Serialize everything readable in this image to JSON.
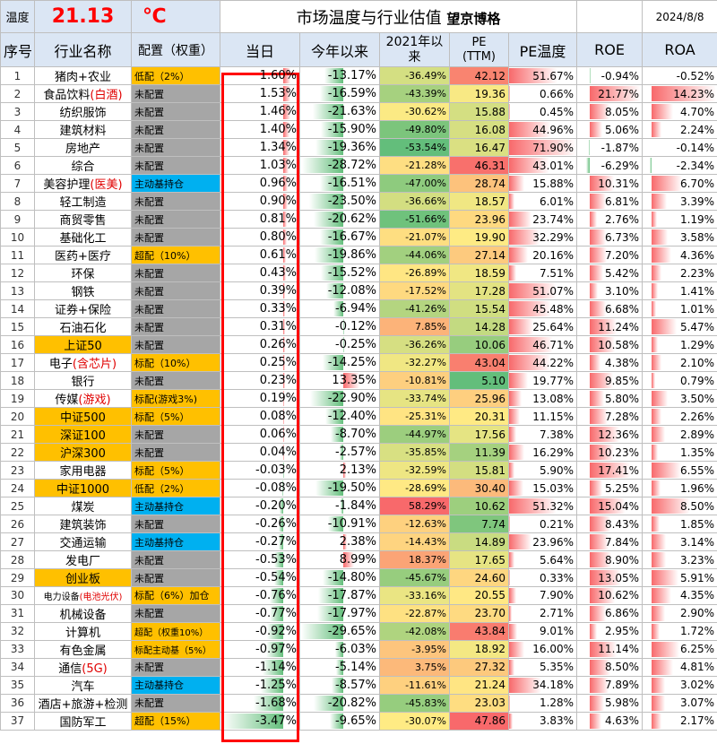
{
  "header": {
    "temp_label": "温度",
    "temp_value": "21.13",
    "temp_unit": "℃",
    "title": "市场温度与行业估值",
    "brand": "望京博格",
    "date": "2024/8/8"
  },
  "columns": [
    "序号",
    "行业名称",
    "配置（权重）",
    "当日",
    "今年以来",
    "2021年以来",
    "PE\n(TTM)",
    "PE温度",
    "ROE",
    "ROA"
  ],
  "colors": {
    "gray": "#a6a6a6",
    "orange": "#ffc000",
    "blue": "#00b0f0",
    "red": "#e00000",
    "highlight": "#ff0000"
  },
  "rows": [
    {
      "idx": "1",
      "name": "猪肉+农业",
      "name_red": "",
      "config": "低配（2%）",
      "cfg": "orange",
      "today": "1.60%",
      "ytd": "-13.17%",
      "since2021": "-36.49%",
      "pe": "42.12",
      "pe_temp": "51.67%",
      "roe": "-0.94%",
      "roa": "-0.52%"
    },
    {
      "idx": "2",
      "name": "食品饮料",
      "name_red": "(白酒)",
      "config": "未配置",
      "cfg": "gray",
      "today": "1.53%",
      "ytd": "-16.59%",
      "since2021": "-43.39%",
      "pe": "19.36",
      "pe_temp": "0.66%",
      "roe": "21.77%",
      "roa": "14.23%"
    },
    {
      "idx": "3",
      "name": "纺织服饰",
      "name_red": "",
      "config": "未配置",
      "cfg": "gray",
      "today": "1.46%",
      "ytd": "-21.63%",
      "since2021": "-30.62%",
      "pe": "15.88",
      "pe_temp": "0.45%",
      "roe": "8.05%",
      "roa": "4.70%"
    },
    {
      "idx": "4",
      "name": "建筑材料",
      "name_red": "",
      "config": "未配置",
      "cfg": "gray",
      "today": "1.40%",
      "ytd": "-15.90%",
      "since2021": "-49.80%",
      "pe": "16.08",
      "pe_temp": "44.96%",
      "roe": "5.06%",
      "roa": "2.24%"
    },
    {
      "idx": "5",
      "name": "房地产",
      "name_red": "",
      "config": "未配置",
      "cfg": "gray",
      "today": "1.34%",
      "ytd": "-19.36%",
      "since2021": "-53.54%",
      "pe": "16.47",
      "pe_temp": "71.90%",
      "roe": "-1.87%",
      "roa": "-0.14%"
    },
    {
      "idx": "6",
      "name": "综合",
      "name_red": "",
      "config": "未配置",
      "cfg": "gray",
      "today": "1.03%",
      "ytd": "-28.72%",
      "since2021": "-21.28%",
      "pe": "46.31",
      "pe_temp": "43.01%",
      "roe": "-6.29%",
      "roa": "-2.34%"
    },
    {
      "idx": "7",
      "name": "美容护理",
      "name_red": "(医美)",
      "config": "主动基持仓",
      "cfg": "blue",
      "today": "0.96%",
      "ytd": "-16.51%",
      "since2021": "-47.00%",
      "pe": "28.74",
      "pe_temp": "15.88%",
      "roe": "10.31%",
      "roa": "6.70%"
    },
    {
      "idx": "8",
      "name": "轻工制造",
      "name_red": "",
      "config": "未配置",
      "cfg": "gray",
      "today": "0.90%",
      "ytd": "-23.50%",
      "since2021": "-36.66%",
      "pe": "18.57",
      "pe_temp": "6.01%",
      "roe": "6.81%",
      "roa": "3.39%"
    },
    {
      "idx": "9",
      "name": "商贸零售",
      "name_red": "",
      "config": "未配置",
      "cfg": "gray",
      "today": "0.81%",
      "ytd": "-20.62%",
      "since2021": "-51.66%",
      "pe": "23.96",
      "pe_temp": "23.74%",
      "roe": "2.76%",
      "roa": "1.19%"
    },
    {
      "idx": "10",
      "name": "基础化工",
      "name_red": "",
      "config": "未配置",
      "cfg": "gray",
      "today": "0.80%",
      "ytd": "-16.67%",
      "since2021": "-21.07%",
      "pe": "19.90",
      "pe_temp": "32.29%",
      "roe": "6.73%",
      "roa": "3.58%"
    },
    {
      "idx": "11",
      "name": "医药+医疗",
      "name_red": "",
      "config": "超配（10%）",
      "cfg": "orange",
      "today": "0.61%",
      "ytd": "-19.86%",
      "since2021": "-44.06%",
      "pe": "27.14",
      "pe_temp": "20.16%",
      "roe": "7.20%",
      "roa": "4.36%"
    },
    {
      "idx": "12",
      "name": "环保",
      "name_red": "",
      "config": "未配置",
      "cfg": "gray",
      "today": "0.43%",
      "ytd": "-15.52%",
      "since2021": "-26.89%",
      "pe": "18.59",
      "pe_temp": "7.51%",
      "roe": "5.42%",
      "roa": "2.23%"
    },
    {
      "idx": "13",
      "name": "钢铁",
      "name_red": "",
      "config": "未配置",
      "cfg": "gray",
      "today": "0.39%",
      "ytd": "-12.08%",
      "since2021": "-17.52%",
      "pe": "17.28",
      "pe_temp": "51.07%",
      "roe": "3.10%",
      "roa": "1.41%"
    },
    {
      "idx": "14",
      "name": "证券+保险",
      "name_red": "",
      "config": "未配置",
      "cfg": "gray",
      "today": "0.33%",
      "ytd": "-6.94%",
      "since2021": "-41.26%",
      "pe": "15.54",
      "pe_temp": "45.48%",
      "roe": "6.68%",
      "roa": "1.01%"
    },
    {
      "idx": "15",
      "name": "石油石化",
      "name_red": "",
      "config": "未配置",
      "cfg": "gray",
      "today": "0.31%",
      "ytd": "-0.12%",
      "since2021": "7.85%",
      "pe": "14.28",
      "pe_temp": "25.64%",
      "roe": "11.24%",
      "roa": "5.47%"
    },
    {
      "idx": "16",
      "name": "上证50",
      "name_red": "",
      "config": "未配置",
      "cfg": "gray",
      "today": "0.26%",
      "ytd": "-0.25%",
      "since2021": "-36.26%",
      "pe": "10.06",
      "pe_temp": "46.71%",
      "roe": "10.58%",
      "roa": "1.29%",
      "name_bg": "orange"
    },
    {
      "idx": "17",
      "name": "电子",
      "name_red": "(含芯片)",
      "config": "标配（10%）",
      "cfg": "orange",
      "today": "0.25%",
      "ytd": "-14.25%",
      "since2021": "-32.27%",
      "pe": "43.04",
      "pe_temp": "44.22%",
      "roe": "4.38%",
      "roa": "2.10%"
    },
    {
      "idx": "18",
      "name": "银行",
      "name_red": "",
      "config": "未配置",
      "cfg": "gray",
      "today": "0.23%",
      "ytd": "13.35%",
      "since2021": "-10.81%",
      "pe": "5.10",
      "pe_temp": "19.77%",
      "roe": "9.85%",
      "roa": "0.79%"
    },
    {
      "idx": "19",
      "name": "传媒",
      "name_red": "(游戏)",
      "config": "标配(游戏3%)",
      "cfg": "orange",
      "today": "0.19%",
      "ytd": "-22.90%",
      "since2021": "-33.74%",
      "pe": "25.96",
      "pe_temp": "13.08%",
      "roe": "5.80%",
      "roa": "3.50%"
    },
    {
      "idx": "20",
      "name": "中证500",
      "name_red": "",
      "config": "标配（5%）",
      "cfg": "orange",
      "today": "0.08%",
      "ytd": "-12.40%",
      "since2021": "-25.31%",
      "pe": "20.31",
      "pe_temp": "11.15%",
      "roe": "7.28%",
      "roa": "2.26%",
      "name_bg": "orange"
    },
    {
      "idx": "21",
      "name": "深证100",
      "name_red": "",
      "config": "未配置",
      "cfg": "gray",
      "today": "0.06%",
      "ytd": "-8.70%",
      "since2021": "-44.97%",
      "pe": "17.56",
      "pe_temp": "7.38%",
      "roe": "12.36%",
      "roa": "2.89%",
      "name_bg": "orange"
    },
    {
      "idx": "22",
      "name": "沪深300",
      "name_red": "",
      "config": "未配置",
      "cfg": "gray",
      "today": "0.04%",
      "ytd": "-2.57%",
      "since2021": "-35.85%",
      "pe": "11.39",
      "pe_temp": "16.29%",
      "roe": "10.23%",
      "roa": "1.35%",
      "name_bg": "orange"
    },
    {
      "idx": "23",
      "name": "家用电器",
      "name_red": "",
      "config": "标配（5%）",
      "cfg": "orange",
      "today": "-0.03%",
      "ytd": "2.13%",
      "since2021": "-32.59%",
      "pe": "15.81",
      "pe_temp": "5.90%",
      "roe": "17.41%",
      "roa": "6.55%"
    },
    {
      "idx": "24",
      "name": "中证1000",
      "name_red": "",
      "config": "低配（2%）",
      "cfg": "orange",
      "today": "-0.08%",
      "ytd": "-19.50%",
      "since2021": "-28.69%",
      "pe": "30.40",
      "pe_temp": "15.03%",
      "roe": "5.25%",
      "roa": "1.96%",
      "name_bg": "orange"
    },
    {
      "idx": "25",
      "name": "煤炭",
      "name_red": "",
      "config": "主动基持仓",
      "cfg": "blue",
      "today": "-0.20%",
      "ytd": "-1.84%",
      "since2021": "58.29%",
      "pe": "10.62",
      "pe_temp": "51.32%",
      "roe": "15.04%",
      "roa": "8.50%"
    },
    {
      "idx": "26",
      "name": "建筑装饰",
      "name_red": "",
      "config": "未配置",
      "cfg": "gray",
      "today": "-0.26%",
      "ytd": "-10.91%",
      "since2021": "-12.63%",
      "pe": "7.74",
      "pe_temp": "0.21%",
      "roe": "8.43%",
      "roa": "1.85%"
    },
    {
      "idx": "27",
      "name": "交通运输",
      "name_red": "",
      "config": "主动基持仓",
      "cfg": "blue",
      "today": "-0.27%",
      "ytd": "2.38%",
      "since2021": "-14.43%",
      "pe": "14.89",
      "pe_temp": "23.96%",
      "roe": "7.84%",
      "roa": "3.14%"
    },
    {
      "idx": "28",
      "name": "发电厂",
      "name_red": "",
      "config": "未配置",
      "cfg": "gray",
      "today": "-0.53%",
      "ytd": "8.99%",
      "since2021": "18.37%",
      "pe": "17.65",
      "pe_temp": "5.64%",
      "roe": "8.90%",
      "roa": "3.23%"
    },
    {
      "idx": "29",
      "name": "创业板",
      "name_red": "",
      "config": "未配置",
      "cfg": "gray",
      "today": "-0.54%",
      "ytd": "-14.80%",
      "since2021": "-45.67%",
      "pe": "24.60",
      "pe_temp": "0.33%",
      "roe": "13.05%",
      "roa": "5.91%",
      "name_bg": "orange"
    },
    {
      "idx": "30",
      "name": "电力设备",
      "name_red": "(电池光伏)",
      "config": "标配（6%）加仓",
      "cfg": "orange",
      "today": "-0.76%",
      "ytd": "-17.87%",
      "since2021": "-33.16%",
      "pe": "20.55",
      "pe_temp": "7.90%",
      "roe": "10.62%",
      "roa": "4.35%",
      "small": true
    },
    {
      "idx": "31",
      "name": "机械设备",
      "name_red": "",
      "config": "未配置",
      "cfg": "gray",
      "today": "-0.77%",
      "ytd": "-17.97%",
      "since2021": "-22.87%",
      "pe": "23.70",
      "pe_temp": "2.71%",
      "roe": "6.86%",
      "roa": "2.90%"
    },
    {
      "idx": "32",
      "name": "计算机",
      "name_red": "",
      "config": "超配（权重10%）",
      "cfg": "orange",
      "today": "-0.92%",
      "ytd": "-29.65%",
      "since2021": "-42.08%",
      "pe": "43.84",
      "pe_temp": "9.01%",
      "roe": "2.95%",
      "roa": "1.72%"
    },
    {
      "idx": "33",
      "name": "有色金属",
      "name_red": "",
      "config": "标配主动基（5%）",
      "cfg": "orange",
      "today": "-0.97%",
      "ytd": "-6.03%",
      "since2021": "-3.95%",
      "pe": "18.92",
      "pe_temp": "16.00%",
      "roe": "11.14%",
      "roa": "6.25%"
    },
    {
      "idx": "34",
      "name": "通信",
      "name_red": "(5G)",
      "config": "未配置",
      "cfg": "gray",
      "today": "-1.14%",
      "ytd": "-5.14%",
      "since2021": "3.75%",
      "pe": "27.32",
      "pe_temp": "5.35%",
      "roe": "8.50%",
      "roa": "4.81%"
    },
    {
      "idx": "35",
      "name": "汽车",
      "name_red": "",
      "config": "主动基持仓",
      "cfg": "blue",
      "today": "-1.25%",
      "ytd": "-8.57%",
      "since2021": "-11.61%",
      "pe": "21.24",
      "pe_temp": "34.18%",
      "roe": "7.89%",
      "roa": "3.02%"
    },
    {
      "idx": "36",
      "name": "酒店+旅游+检测",
      "name_red": "",
      "config": "未配置",
      "cfg": "gray",
      "today": "-1.68%",
      "ytd": "-20.82%",
      "since2021": "-45.83%",
      "pe": "23.03",
      "pe_temp": "1.28%",
      "roe": "5.98%",
      "roa": "3.07%"
    },
    {
      "idx": "37",
      "name": "国防军工",
      "name_red": "",
      "config": "超配（15%）",
      "cfg": "orange",
      "today": "-3.47%",
      "ytd": "-9.65%",
      "since2021": "-30.07%",
      "pe": "47.86",
      "pe_temp": "3.83%",
      "roe": "4.63%",
      "roa": "2.17%"
    }
  ]
}
